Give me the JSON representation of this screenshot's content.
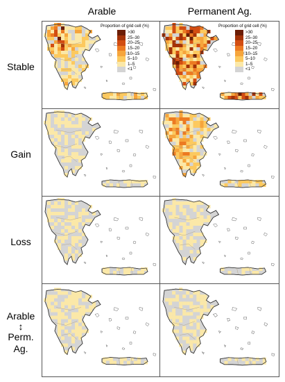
{
  "columns": [
    "Arable",
    "Permanent Ag."
  ],
  "rows": [
    {
      "label": "Stable"
    },
    {
      "label": "Gain"
    },
    {
      "label": "Loss"
    },
    {
      "label": "Arable",
      "arrow": "↕",
      "label2": "Perm.",
      "label3": "Ag."
    }
  ],
  "legend": {
    "title": "Proportion of grid cell (%)",
    "items": [
      {
        "label": ">30",
        "color": "#6b1d06"
      },
      {
        "label": "25–30",
        "color": "#a33208"
      },
      {
        "label": "20–25",
        "color": "#d24d12"
      },
      {
        "label": "15–20",
        "color": "#ec7a22"
      },
      {
        "label": "10–15",
        "color": "#f6a53c"
      },
      {
        "label": "5–10",
        "color": "#fcc95f"
      },
      {
        "label": "1–5",
        "color": "#fbe8a8"
      },
      {
        "label": "<1",
        "color": "#d4d4d4"
      }
    ]
  },
  "panels": [
    {
      "id": "stable-arable",
      "level": 2,
      "hot": "northwest"
    },
    {
      "id": "stable-permanent",
      "level": 3,
      "hot": "all"
    },
    {
      "id": "gain-arable",
      "level": 1,
      "hot": "none"
    },
    {
      "id": "gain-permanent",
      "level": 2,
      "hot": "west"
    },
    {
      "id": "loss-arable",
      "level": 1,
      "hot": "none"
    },
    {
      "id": "loss-permanent",
      "level": 1,
      "hot": "none"
    },
    {
      "id": "conversion-arable",
      "level": 1,
      "hot": "none"
    },
    {
      "id": "conversion-permanent",
      "level": 1,
      "hot": "none"
    }
  ]
}
